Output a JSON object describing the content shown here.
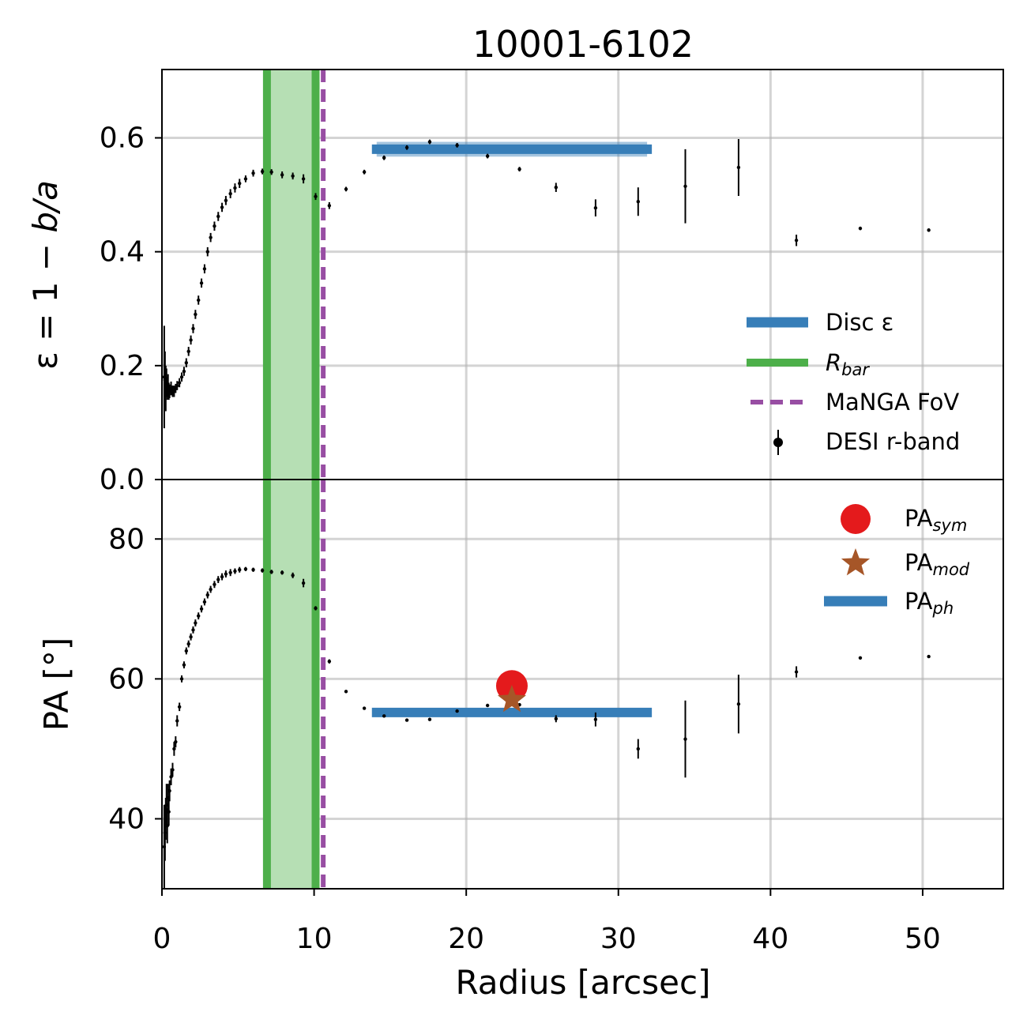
{
  "title": "10001-6102",
  "xlabel": "Radius [arcsec]",
  "colors": {
    "disc": "#377eb8",
    "bar": "#4daf4a",
    "bar_fill": "#b6dfb4",
    "fov": "#984ea3",
    "sym": "#e41a1c",
    "mod": "#a65628",
    "data": "#000000"
  },
  "chart_data": [
    {
      "type": "scatter",
      "panel": "top",
      "ylabel_parts": [
        "ε = 1 − ",
        "b/a"
      ],
      "xlim": [
        0,
        55.3
      ],
      "ylim": [
        0,
        0.72
      ],
      "xticks": [
        0,
        10,
        20,
        30,
        40,
        50
      ],
      "yticks": [
        0.0,
        0.2,
        0.4,
        0.6
      ],
      "ytick_labels": [
        "0.0",
        "0.2",
        "0.4",
        "0.6"
      ],
      "grid": true,
      "legend_placement": "center-right",
      "bar_region": [
        6.9,
        10.1
      ],
      "manga_fov": 10.6,
      "disc_band": {
        "x": [
          13.8,
          32.2
        ],
        "y": 0.58,
        "y_err": 0.013
      },
      "legend": {
        "disc": "Disc ε",
        "bar": "R",
        "bar_sub": "bar",
        "fov": "MaNGA FoV",
        "data": "DESI r-band"
      },
      "series": [
        {
          "x": [
            0.15,
            0.2,
            0.25,
            0.3,
            0.35,
            0.4,
            0.45,
            0.5,
            0.6,
            0.7,
            0.8,
            0.9,
            1.0,
            1.15,
            1.3,
            1.45,
            1.6,
            1.75,
            1.9,
            2.05,
            2.2,
            2.4,
            2.6,
            2.8,
            3.0,
            3.2,
            3.45,
            3.7,
            3.95,
            4.2,
            4.5,
            4.8,
            5.1,
            5.5,
            6.0,
            6.6,
            7.2,
            7.9,
            8.6,
            9.3,
            10.1,
            11.0,
            12.1,
            13.3,
            14.6,
            16.1,
            17.6,
            19.4,
            21.4,
            23.5,
            25.9,
            28.5,
            31.3,
            34.4,
            37.9,
            41.7,
            45.9,
            50.4
          ],
          "y": [
            0.18,
            0.175,
            0.16,
            0.17,
            0.16,
            0.165,
            0.155,
            0.155,
            0.16,
            0.155,
            0.155,
            0.16,
            0.165,
            0.17,
            0.18,
            0.19,
            0.205,
            0.225,
            0.245,
            0.265,
            0.29,
            0.315,
            0.345,
            0.37,
            0.4,
            0.425,
            0.445,
            0.462,
            0.478,
            0.49,
            0.502,
            0.512,
            0.52,
            0.528,
            0.538,
            0.541,
            0.54,
            0.535,
            0.533,
            0.528,
            0.497,
            0.481,
            0.51,
            0.54,
            0.565,
            0.583,
            0.593,
            0.587,
            0.568,
            0.545,
            0.513,
            0.477,
            0.488,
            0.515,
            0.548,
            0.42,
            0.441,
            0.438
          ],
          "y_err": [
            0.09,
            0.05,
            0.04,
            0.025,
            0.02,
            0.02,
            0.015,
            0.012,
            0.012,
            0.01,
            0.01,
            0.008,
            0.008,
            0.008,
            0.008,
            0.008,
            0.008,
            0.008,
            0.008,
            0.008,
            0.008,
            0.008,
            0.008,
            0.008,
            0.008,
            0.008,
            0.008,
            0.008,
            0.008,
            0.008,
            0.008,
            0.008,
            0.008,
            0.006,
            0.006,
            0.005,
            0.005,
            0.006,
            0.006,
            0.008,
            0.006,
            0.006,
            0.004,
            0.004,
            0.004,
            0.004,
            0.004,
            0.004,
            0.004,
            0.004,
            0.008,
            0.015,
            0.025,
            0.065,
            0.05,
            0.01,
            0.003,
            0.003
          ]
        }
      ]
    },
    {
      "type": "scatter",
      "panel": "bottom",
      "ylabel": "PA [°]",
      "xlim": [
        0,
        55.3
      ],
      "ylim": [
        30,
        88.5
      ],
      "xticks": [
        0,
        10,
        20,
        30,
        40,
        50
      ],
      "xtick_labels": [
        "0",
        "10",
        "20",
        "30",
        "40",
        "50"
      ],
      "yticks": [
        40,
        60,
        80
      ],
      "ytick_labels": [
        "40",
        "60",
        "80"
      ],
      "grid": true,
      "legend_placement": "top-right",
      "bar_region": [
        6.9,
        10.1
      ],
      "manga_fov": 10.6,
      "pa_ph_band": {
        "x": [
          13.8,
          32.2
        ],
        "y": 55.2,
        "y_err": 0.6
      },
      "pa_sym": {
        "x": 23.0,
        "y": 59.0
      },
      "pa_mod": {
        "x": 23.0,
        "y": 57.0
      },
      "legend": {
        "sym": "PA",
        "sym_sub": "sym",
        "mod": "PA",
        "mod_sub": "mod",
        "ph": "PA",
        "ph_sub": "ph"
      },
      "series": [
        {
          "x": [
            0.15,
            0.2,
            0.25,
            0.3,
            0.35,
            0.4,
            0.45,
            0.5,
            0.6,
            0.7,
            0.8,
            0.9,
            1.0,
            1.15,
            1.3,
            1.45,
            1.6,
            1.75,
            1.9,
            2.05,
            2.2,
            2.4,
            2.6,
            2.8,
            3.0,
            3.2,
            3.45,
            3.7,
            3.95,
            4.2,
            4.5,
            4.8,
            5.1,
            5.5,
            6.0,
            6.6,
            7.2,
            7.9,
            8.6,
            9.3,
            10.1,
            11.0,
            12.1,
            13.3,
            14.6,
            16.1,
            17.6,
            19.4,
            21.4,
            23.5,
            25.9,
            28.5,
            31.3,
            34.4,
            37.9,
            41.7,
            45.9,
            50.4
          ],
          "y": [
            36,
            38,
            40,
            42,
            39,
            43,
            41,
            44,
            46,
            47,
            50,
            51,
            54,
            56,
            60,
            62,
            64,
            65,
            66,
            67,
            68,
            69,
            70,
            71,
            72,
            72.8,
            73.5,
            74.2,
            74.6,
            75,
            75.2,
            75.4,
            75.6,
            75.7,
            75.6,
            75.5,
            75.3,
            75.2,
            74.8,
            73.7,
            70.1,
            62.5,
            58.2,
            55.8,
            54.7,
            54.1,
            54.2,
            55.4,
            56.2,
            56.3,
            54.3,
            54.2,
            50.0,
            51.4,
            56.4,
            61.0,
            63.0,
            63.2
          ],
          "y_err": [
            6,
            4,
            3,
            3,
            2.5,
            2,
            2,
            1.5,
            1.2,
            1,
            1,
            0.8,
            0.8,
            0.6,
            0.5,
            0.5,
            0.5,
            0.5,
            0.5,
            0.5,
            0.5,
            0.5,
            0.5,
            0.5,
            0.5,
            0.5,
            0.5,
            0.5,
            0.5,
            0.5,
            0.5,
            0.4,
            0.4,
            0.3,
            0.3,
            0.3,
            0.3,
            0.3,
            0.4,
            0.6,
            0.3,
            0.3,
            0.2,
            0.2,
            0.2,
            0.2,
            0.2,
            0.2,
            0.2,
            0.2,
            0.5,
            1.0,
            1.4,
            5.5,
            4.2,
            0.8,
            0.2,
            0.2
          ]
        }
      ]
    }
  ]
}
